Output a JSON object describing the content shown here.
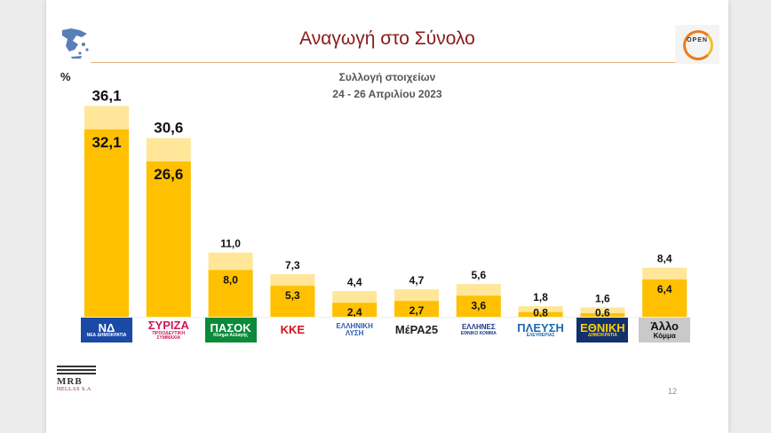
{
  "header": {
    "title": "Αναγωγή στο Σύνολο",
    "unit": "%",
    "subtitle_line1": "Συλλογή στοιχείων",
    "subtitle_line2": "24 -  26 Απριλίου 2023",
    "page_number": "12"
  },
  "branding": {
    "source_name": "MRB",
    "source_sub": "HELLAS S.A",
    "channel_logo": "OPEN"
  },
  "chart_data": {
    "type": "bar",
    "title": "Αναγωγή στο Σύνολο",
    "ylabel": "%",
    "ylim": [
      0,
      38
    ],
    "categories": [
      "ΝΕΑ ΔΗΜΟΚΡΑΤΙΑ",
      "ΣΥΡΙΖΑ",
      "ΠΑΣΟΚ",
      "ΚΚΕ",
      "ΕΛΛΗΝΙΚΗ ΛΥΣΗ",
      "ΜέΡΑ25",
      "ΕΛΛΗΝΕΣ ΕΘΝΙΚΟ ΚΟΜΜΑ",
      "ΠΛΕΥΣΗ ΕΛΕΥΘΕΡΙΑΣ",
      "ΕΘΝΙΚΗ ΔΗΜΟΚΡΑΤΙΑ",
      "Άλλο Κόμμα"
    ],
    "series": [
      {
        "values": [
          32.1,
          26.6,
          8.0,
          5.3,
          2.4,
          2.7,
          3.6,
          0.8,
          0.6,
          6.4
        ],
        "labels": [
          "32,1",
          "26,6",
          "8,0",
          "5,3",
          "2,4",
          "2,7",
          "3,6",
          "0,8",
          "0,6",
          "6,4"
        ],
        "color": "#ffc000"
      },
      {
        "values": [
          36.1,
          30.6,
          11.0,
          7.3,
          4.4,
          4.7,
          5.6,
          1.8,
          1.6,
          8.4
        ],
        "labels": [
          "36,1",
          "30,6",
          "11,0",
          "7,3",
          "4,4",
          "4,7",
          "5,6",
          "1,8",
          "1,6",
          "8,4"
        ],
        "color": "#ffe699"
      }
    ],
    "legend": "none",
    "grid": false
  },
  "party_logos": [
    {
      "line1": "ΝΔ",
      "line2": "ΝΕΑ ΔΗΜΟΚΡΑΤΙΑ",
      "bg": "#1b4aa6",
      "fg": "#ffffff"
    },
    {
      "line1": "ΣΥΡΙΖΑ",
      "line2": "ΠΡΟΟΔΕΥΤΙΚΗ ΣΥΜΜΑΧΙΑ",
      "bg": "#ffffff",
      "fg": "#d4145a"
    },
    {
      "line1": "ΠΑΣΟΚ",
      "line2": "Κίνημα Αλλαγής",
      "bg": "#0a8a3a",
      "fg": "#ffffff"
    },
    {
      "line1": "ΚΚΕ",
      "line2": "",
      "bg": "#ffffff",
      "fg": "#d0161b"
    },
    {
      "line1": "ΕΛΛΗΝΙΚΗ",
      "line2": "ΛΥΣΗ",
      "bg": "#ffffff",
      "fg": "#2a5db0"
    },
    {
      "line1": "ΜέΡΑ25",
      "line2": "",
      "bg": "#ffffff",
      "fg": "#222222"
    },
    {
      "line1": "ΕΛΛΗΝΕΣ",
      "line2": "ΕΘΝΙΚΟ ΚΟΜΜΑ",
      "bg": "#ffffff",
      "fg": "#1a3a8a"
    },
    {
      "line1": "ΠΛΕΥΣΗ",
      "line2": "ΕΛΕΥΘΕΡΙΑΣ",
      "bg": "#ffffff",
      "fg": "#1a6ab0"
    },
    {
      "line1": "ΕΘΝΙΚΗ",
      "line2": "ΔΗΜΟΚΡΑΤΙΑ",
      "bg": "#13306e",
      "fg": "#ffd000"
    },
    {
      "line1": "Άλλο",
      "line2": "Κόμμα",
      "bg": "#c9c9c9",
      "fg": "#111111"
    }
  ]
}
